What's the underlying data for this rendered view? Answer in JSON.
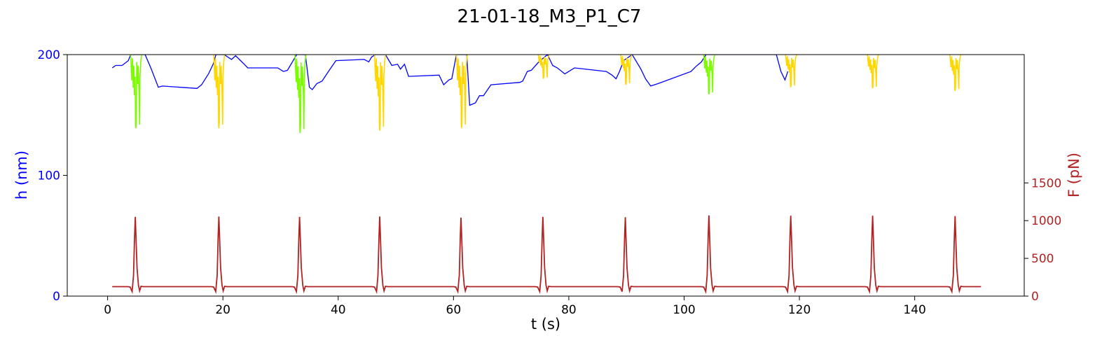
{
  "chart_data": {
    "type": "line",
    "title": "21-01-18_M3_P1_C7",
    "xlabel": "t (s)",
    "ylabel_left": "h (nm)",
    "ylabel_right": "F (pN)",
    "xlim": [
      -7,
      159
    ],
    "ylim_left": [
      0,
      200
    ],
    "ylim_right": [
      0,
      3200
    ],
    "xticks": [
      0,
      20,
      40,
      60,
      80,
      100,
      120,
      140
    ],
    "yticks_left": [
      0,
      100,
      200
    ],
    "yticks_right": [
      0,
      500,
      1000,
      1500
    ],
    "colors": {
      "height": "#0000ff",
      "force": "#b22222",
      "left_axis": "#0000ff",
      "right_axis": "#b22222",
      "compression_green": "#7cfc00",
      "compression_gold": "#ffd700"
    },
    "series": [
      {
        "name": "h (nm)",
        "axis": "left",
        "points": [
          [
            0.8,
            189
          ],
          [
            1.4,
            191
          ],
          [
            2.5,
            191
          ],
          [
            3.6,
            195
          ],
          [
            4.0,
            200
          ],
          [
            6.5,
            200
          ],
          [
            7.5,
            189
          ],
          [
            8.8,
            173
          ],
          [
            9.5,
            174
          ],
          [
            15.5,
            172
          ],
          [
            16.3,
            175
          ],
          [
            17.5,
            184
          ],
          [
            18.3,
            192
          ],
          [
            18.8,
            200
          ],
          [
            20.2,
            200
          ],
          [
            21.5,
            196
          ],
          [
            22.2,
            199
          ],
          [
            23.5,
            193
          ],
          [
            24.3,
            189
          ],
          [
            29.5,
            189
          ],
          [
            30.5,
            186
          ],
          [
            31.2,
            187
          ],
          [
            32.8,
            200
          ],
          [
            34.3,
            200
          ],
          [
            35.0,
            173
          ],
          [
            35.5,
            171
          ],
          [
            36.3,
            176
          ],
          [
            37.2,
            178
          ],
          [
            38.3,
            186
          ],
          [
            39.6,
            195
          ],
          [
            44.5,
            196
          ],
          [
            45.3,
            194
          ],
          [
            45.8,
            198
          ],
          [
            46.5,
            200
          ],
          [
            48.2,
            200
          ],
          [
            49.3,
            191
          ],
          [
            50.3,
            192
          ],
          [
            50.8,
            188
          ],
          [
            51.5,
            192
          ],
          [
            52.2,
            182
          ],
          [
            57.5,
            183
          ],
          [
            58.3,
            175
          ],
          [
            59.2,
            179
          ],
          [
            59.7,
            180
          ],
          [
            60.5,
            200
          ],
          [
            62.3,
            200
          ],
          [
            62.8,
            158
          ],
          [
            63.8,
            160
          ],
          [
            64.5,
            166
          ],
          [
            65.2,
            166
          ],
          [
            66.5,
            175
          ],
          [
            71.5,
            177
          ],
          [
            72.0,
            178
          ],
          [
            72.8,
            186
          ],
          [
            73.5,
            187
          ],
          [
            74.8,
            194
          ],
          [
            76.3,
            200
          ],
          [
            77.2,
            191
          ],
          [
            78.0,
            189
          ],
          [
            78.8,
            186
          ],
          [
            79.3,
            184
          ],
          [
            80.0,
            186
          ],
          [
            81.0,
            189
          ],
          [
            86.5,
            186
          ],
          [
            87.5,
            183
          ],
          [
            88.2,
            180
          ],
          [
            88.8,
            186
          ],
          [
            89.5,
            195
          ],
          [
            91.0,
            200
          ],
          [
            92.5,
            188
          ],
          [
            93.3,
            180
          ],
          [
            94.2,
            174
          ],
          [
            95.5,
            176
          ],
          [
            101.2,
            186
          ],
          [
            102.0,
            190
          ],
          [
            103.0,
            194
          ],
          [
            103.8,
            200
          ],
          [
            116.0,
            200
          ],
          [
            116.8,
            186
          ],
          [
            117.5,
            179
          ],
          [
            118.0,
            186
          ]
        ]
      },
      {
        "name": "F (pN)",
        "axis": "right",
        "peaks_t": [
          4.8,
          19.3,
          33.3,
          47.2,
          61.3,
          75.5,
          89.8,
          104.3,
          118.5,
          132.7,
          147.0
        ],
        "peak_values": [
          1050,
          1055,
          1050,
          1055,
          1040,
          1050,
          1045,
          1070,
          1065,
          1065,
          1060
        ],
        "baseline": 125,
        "dip": 60,
        "t_start": 0.8,
        "t_end": 151.5
      }
    ],
    "compression_segments": [
      {
        "center": 4.9,
        "color": "green",
        "min_h": 139
      },
      {
        "center": 19.3,
        "color": "gold",
        "min_h": 139
      },
      {
        "center": 33.4,
        "color": "green",
        "min_h": 135
      },
      {
        "center": 47.2,
        "color": "gold",
        "min_h": 137
      },
      {
        "center": 61.4,
        "color": "gold",
        "min_h": 139
      },
      {
        "center": 75.6,
        "color": "gold",
        "min_h": 180
      },
      {
        "center": 89.9,
        "color": "gold",
        "min_h": 175
      },
      {
        "center": 104.3,
        "color": "green",
        "min_h": 167
      },
      {
        "center": 118.5,
        "color": "gold",
        "min_h": 173
      },
      {
        "center": 132.7,
        "color": "gold",
        "min_h": 172
      },
      {
        "center": 147.0,
        "color": "gold",
        "min_h": 170
      }
    ]
  }
}
